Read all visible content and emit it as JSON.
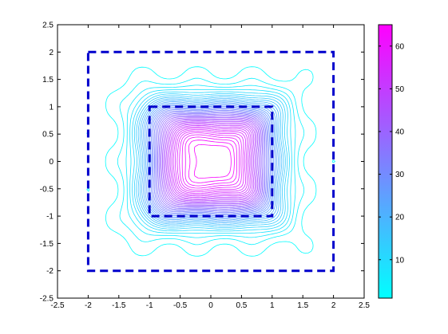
{
  "chart_data": {
    "type": "contour",
    "title": "",
    "xlabel": "",
    "ylabel": "",
    "xlim": [
      -2.5,
      2.5
    ],
    "ylim": [
      -2.5,
      2.5
    ],
    "xticks": [
      -2.5,
      -2,
      -1.5,
      -1,
      -0.5,
      0,
      0.5,
      1,
      1.5,
      2,
      2.5
    ],
    "yticks": [
      -2.5,
      -2,
      -1.5,
      -1,
      -0.5,
      0,
      0.5,
      1,
      1.5,
      2,
      2.5
    ],
    "xtick_labels": [
      "-2.5",
      "-2",
      "-1.5",
      "-1",
      "-0.5",
      "0",
      "0.5",
      "1",
      "1.5",
      "2",
      "2.5"
    ],
    "ytick_labels": [
      "-2.5",
      "-2",
      "-1.5",
      "-1",
      "-0.5",
      "0",
      "0.5",
      "1",
      "1.5",
      "2",
      "2.5"
    ],
    "grid": false,
    "colormap": "cool",
    "colormap_low": "#00ffff",
    "colormap_high": "#ff00ff",
    "colorbar": {
      "range": [
        1,
        65
      ],
      "ticks": [
        10,
        20,
        30,
        40,
        50,
        60
      ],
      "tick_labels": [
        "10",
        "20",
        "30",
        "40",
        "50",
        "60"
      ],
      "placement": "right"
    },
    "contour_levels": 40,
    "field_peak": 65,
    "outer_square": {
      "x": [
        -2,
        2
      ],
      "y": [
        -2,
        2
      ],
      "style": "dashed",
      "color": "#0000cc"
    },
    "inner_square": {
      "x": [
        -1,
        1
      ],
      "y": [
        -1,
        1
      ],
      "style": "dashed",
      "color": "#0000cc"
    }
  }
}
